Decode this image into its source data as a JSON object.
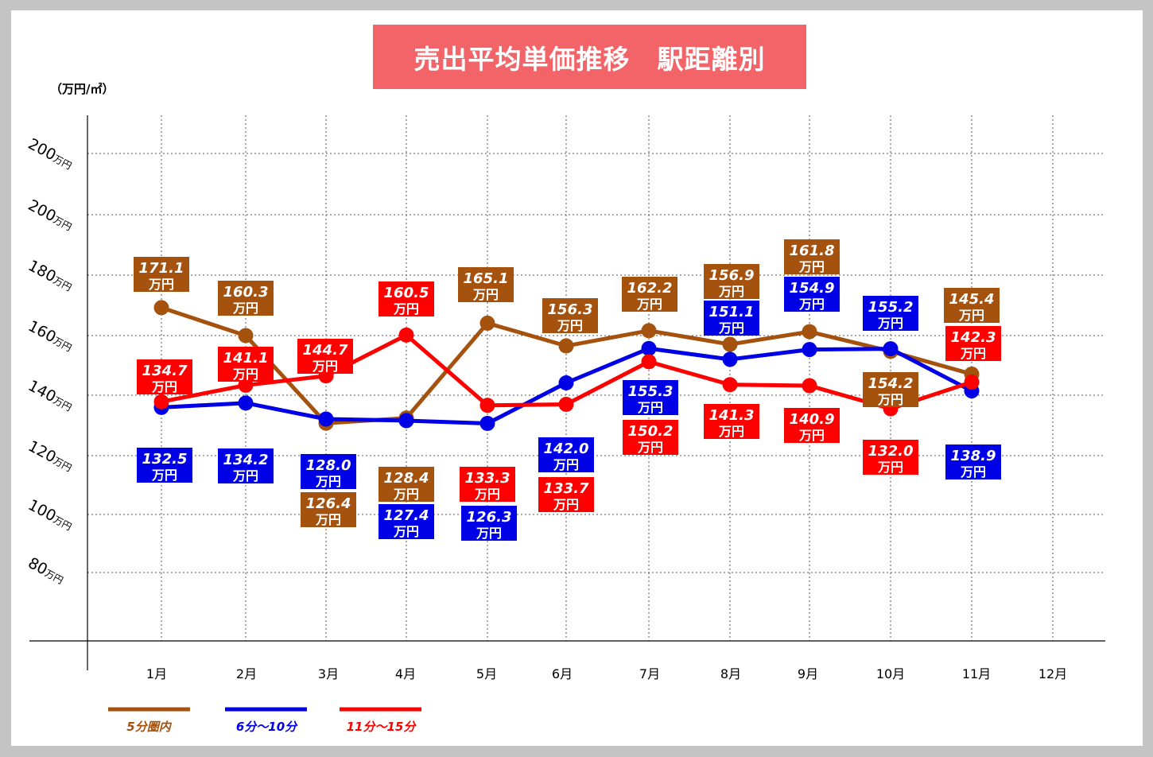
{
  "chart_data": {
    "type": "line",
    "title": "売出平均単価推移　駅距離別",
    "y_unit": "（万円/㎡）",
    "y_tick_labels": [
      "200",
      "200",
      "180",
      "160",
      "140",
      "120",
      "100",
      "80"
    ],
    "y_tick_suffix": "万円",
    "value_unit": "万円",
    "categories": [
      "1月",
      "2月",
      "3月",
      "4月",
      "5月",
      "6月",
      "7月",
      "8月",
      "9月",
      "10月",
      "11月",
      "12月"
    ],
    "series": [
      {
        "name": "5分圏内",
        "color": "#a5520f",
        "values": [
          171.1,
          160.3,
          126.4,
          128.4,
          165.1,
          156.3,
          162.2,
          156.9,
          161.8,
          154.2,
          145.4,
          null
        ]
      },
      {
        "name": "6分～10分",
        "color": "#0000e6",
        "values": [
          132.5,
          134.2,
          128.0,
          127.4,
          126.3,
          142.0,
          155.3,
          151.1,
          154.9,
          155.2,
          138.9,
          null
        ]
      },
      {
        "name": "11分～15分",
        "color": "#ff0000",
        "values": [
          134.7,
          141.1,
          144.7,
          160.5,
          133.3,
          133.7,
          150.2,
          141.3,
          140.9,
          132.0,
          142.3,
          null
        ]
      }
    ],
    "grid": "dotted",
    "legend_position": "bottom-left"
  }
}
